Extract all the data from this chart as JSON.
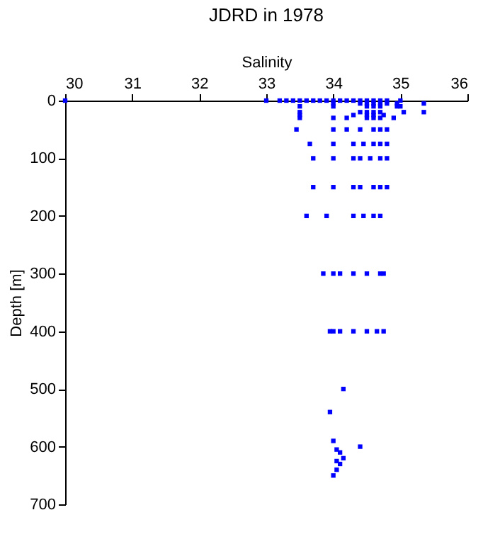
{
  "chart_data": {
    "type": "scatter",
    "title": "JDRD in 1978",
    "xlabel": "Salinity",
    "ylabel": "Depth [m]",
    "xlim": [
      30,
      36
    ],
    "xticks": [
      30,
      31,
      32,
      33,
      34,
      35,
      36
    ],
    "ylim": [
      700,
      0
    ],
    "yticks": [
      0,
      100,
      200,
      300,
      400,
      500,
      600,
      700
    ],
    "grid": false,
    "legend": false,
    "marker": "square",
    "series": [
      {
        "color": "#0000ff",
        "x": [
          30.0,
          33.0,
          33.2,
          33.3,
          33.4,
          33.5,
          33.6,
          33.7,
          33.8,
          33.9,
          34.0,
          34.1,
          34.2,
          34.3,
          34.4,
          34.5,
          34.6,
          34.7,
          34.8,
          35.0,
          34.0,
          34.4,
          34.5,
          34.6,
          34.7,
          34.8,
          34.95,
          35.35,
          33.5,
          34.0,
          34.5,
          34.6,
          34.7,
          34.95,
          35.0,
          33.5,
          34.4,
          34.5,
          34.6,
          34.7,
          35.05,
          35.35,
          33.5,
          34.3,
          34.5,
          34.6,
          34.75,
          33.5,
          34.0,
          34.2,
          34.5,
          34.6,
          34.7,
          34.9,
          33.45,
          34.0,
          34.2,
          34.4,
          34.6,
          34.7,
          34.8,
          33.65,
          34.0,
          34.3,
          34.45,
          34.6,
          34.7,
          34.8,
          33.7,
          34.0,
          34.3,
          34.4,
          34.55,
          34.7,
          34.8,
          33.7,
          34.0,
          34.3,
          34.4,
          34.6,
          34.7,
          34.8,
          33.6,
          33.9,
          34.3,
          34.45,
          34.6,
          34.7,
          33.85,
          34.0,
          34.1,
          34.3,
          34.5,
          34.7,
          34.75,
          33.95,
          34.0,
          34.1,
          34.3,
          34.5,
          34.65,
          34.75,
          34.15,
          33.95,
          34.0,
          34.4,
          34.05,
          34.1,
          34.15,
          34.05,
          34.1,
          34.05,
          34.0
        ],
        "values": [
          0,
          0,
          0,
          0,
          0,
          0,
          0,
          0,
          0,
          0,
          0,
          0,
          0,
          0,
          0,
          0,
          0,
          0,
          0,
          0,
          5,
          5,
          5,
          5,
          5,
          5,
          5,
          5,
          10,
          10,
          10,
          10,
          10,
          10,
          10,
          20,
          20,
          20,
          20,
          20,
          20,
          20,
          25,
          25,
          25,
          25,
          25,
          30,
          30,
          30,
          30,
          30,
          30,
          30,
          50,
          50,
          50,
          50,
          50,
          50,
          50,
          75,
          75,
          75,
          75,
          75,
          75,
          75,
          100,
          100,
          100,
          100,
          100,
          100,
          100,
          150,
          150,
          150,
          150,
          150,
          150,
          150,
          200,
          200,
          200,
          200,
          200,
          200,
          300,
          300,
          300,
          300,
          300,
          300,
          300,
          400,
          400,
          400,
          400,
          400,
          400,
          400,
          500,
          540,
          590,
          600,
          605,
          610,
          620,
          625,
          630,
          640,
          650
        ]
      }
    ]
  }
}
